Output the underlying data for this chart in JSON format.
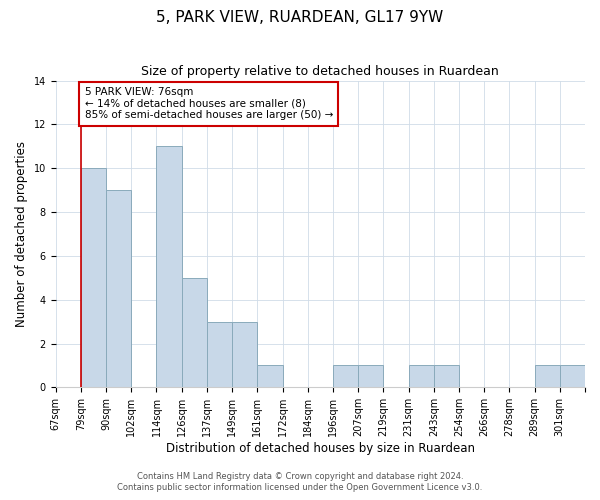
{
  "title": "5, PARK VIEW, RUARDEAN, GL17 9YW",
  "subtitle": "Size of property relative to detached houses in Ruardean",
  "xlabel": "Distribution of detached houses by size in Ruardean",
  "ylabel": "Number of detached properties",
  "bin_labels": [
    "67sqm",
    "79sqm",
    "90sqm",
    "102sqm",
    "114sqm",
    "126sqm",
    "137sqm",
    "149sqm",
    "161sqm",
    "172sqm",
    "184sqm",
    "196sqm",
    "207sqm",
    "219sqm",
    "231sqm",
    "243sqm",
    "254sqm",
    "266sqm",
    "278sqm",
    "289sqm",
    "301sqm"
  ],
  "bar_heights": [
    0,
    10,
    9,
    0,
    11,
    5,
    3,
    3,
    1,
    0,
    0,
    1,
    1,
    0,
    1,
    1,
    0,
    0,
    0,
    1,
    1
  ],
  "bar_color": "#c8d8e8",
  "bar_edge_color": "#8aaabb",
  "ylim": [
    0,
    14
  ],
  "yticks": [
    0,
    2,
    4,
    6,
    8,
    10,
    12,
    14
  ],
  "marker_color": "#cc0000",
  "annotation_title": "5 PARK VIEW: 76sqm",
  "annotation_line1": "← 14% of detached houses are smaller (8)",
  "annotation_line2": "85% of semi-detached houses are larger (50) →",
  "annotation_box_color": "#cc0000",
  "footer_line1": "Contains HM Land Registry data © Crown copyright and database right 2024.",
  "footer_line2": "Contains public sector information licensed under the Open Government Licence v3.0.",
  "background_color": "#ffffff",
  "grid_color": "#d0dce8",
  "title_fontsize": 11,
  "subtitle_fontsize": 9,
  "label_fontsize": 8.5,
  "tick_fontsize": 7,
  "annotation_fontsize": 7.5,
  "footer_fontsize": 6
}
